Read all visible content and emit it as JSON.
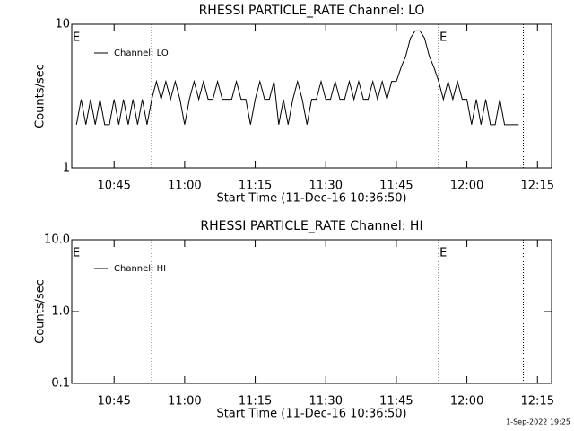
{
  "chart_data": [
    {
      "type": "line",
      "title": "RHESSI PARTICLE_RATE Channel: LO",
      "xlabel": "Start Time (11-Dec-16 10:36:50)",
      "ylabel": "Counts/sec",
      "log_y": true,
      "ylim": [
        1,
        10
      ],
      "yticks": [
        1,
        10
      ],
      "xlim": [
        "10:36",
        "12:18"
      ],
      "xticks": [
        "10:45",
        "11:00",
        "11:15",
        "11:30",
        "11:45",
        "12:00",
        "12:15"
      ],
      "vlines": [
        "10:53",
        "11:54",
        "12:12"
      ],
      "annotations": [
        {
          "text": "E",
          "x": "10:36"
        },
        {
          "text": "E",
          "x": "11:54"
        }
      ],
      "legend": "upper left",
      "x": [
        "10:37",
        "10:38",
        "10:39",
        "10:40",
        "10:41",
        "10:42",
        "10:43",
        "10:44",
        "10:45",
        "10:46",
        "10:47",
        "10:48",
        "10:49",
        "10:50",
        "10:51",
        "10:52",
        "10:53",
        "10:54",
        "10:55",
        "10:56",
        "10:57",
        "10:58",
        "10:59",
        "11:00",
        "11:01",
        "11:02",
        "11:03",
        "11:04",
        "11:05",
        "11:06",
        "11:07",
        "11:08",
        "11:09",
        "11:10",
        "11:11",
        "11:12",
        "11:13",
        "11:14",
        "11:15",
        "11:16",
        "11:17",
        "11:18",
        "11:19",
        "11:20",
        "11:21",
        "11:22",
        "11:23",
        "11:24",
        "11:25",
        "11:26",
        "11:27",
        "11:28",
        "11:29",
        "11:30",
        "11:31",
        "11:32",
        "11:33",
        "11:34",
        "11:35",
        "11:36",
        "11:37",
        "11:38",
        "11:39",
        "11:40",
        "11:41",
        "11:42",
        "11:43",
        "11:44",
        "11:45",
        "11:46",
        "11:47",
        "11:48",
        "11:49",
        "11:50",
        "11:51",
        "11:52",
        "11:53",
        "11:54",
        "11:55",
        "11:56",
        "11:57",
        "11:58",
        "11:59",
        "12:00",
        "12:01",
        "12:02",
        "12:03",
        "12:04",
        "12:05",
        "12:06",
        "12:07",
        "12:08",
        "12:09",
        "12:10",
        "12:11"
      ],
      "series": [
        {
          "name": "Channel: LO",
          "color": "#000000",
          "values": [
            2,
            3,
            2,
            3,
            2,
            3,
            2,
            2,
            3,
            2,
            3,
            2,
            3,
            2,
            3,
            2,
            3,
            4,
            3,
            4,
            3,
            4,
            3,
            2,
            3,
            4,
            3,
            4,
            3,
            3,
            4,
            3,
            3,
            3,
            4,
            3,
            3,
            2,
            3,
            4,
            3,
            3,
            4,
            2,
            3,
            2,
            3,
            4,
            3,
            2,
            3,
            3,
            4,
            3,
            3,
            4,
            3,
            3,
            4,
            3,
            4,
            3,
            3,
            4,
            3,
            4,
            3,
            4,
            4,
            5,
            6,
            8,
            9,
            9,
            8,
            6,
            5,
            4,
            3,
            4,
            3,
            4,
            3,
            3,
            2,
            3,
            2,
            3,
            2,
            2,
            3,
            2,
            2,
            2,
            2
          ]
        }
      ]
    },
    {
      "type": "line",
      "title": "RHESSI PARTICLE_RATE Channel: HI",
      "xlabel": "Start Time (11-Dec-16 10:36:50)",
      "ylabel": "Counts/sec",
      "log_y": true,
      "ylim": [
        0.1,
        10
      ],
      "yticks": [
        0.1,
        {
          "value": 1,
          "label": "1.0"
        },
        {
          "value": 10,
          "label": "10.0"
        }
      ],
      "xlim": [
        "10:36",
        "12:18"
      ],
      "xticks": [
        "10:45",
        "11:00",
        "11:15",
        "11:30",
        "11:45",
        "12:00",
        "12:15"
      ],
      "vlines": [
        "10:53",
        "11:54",
        "12:12"
      ],
      "annotations": [
        {
          "text": "E",
          "x": "10:36"
        },
        {
          "text": "E",
          "x": "11:54"
        }
      ],
      "legend": "upper left",
      "x": [],
      "series": [
        {
          "name": "Channel: HI",
          "color": "#000000",
          "values": []
        }
      ]
    }
  ],
  "footer": "1-Sep-2022 19:25"
}
